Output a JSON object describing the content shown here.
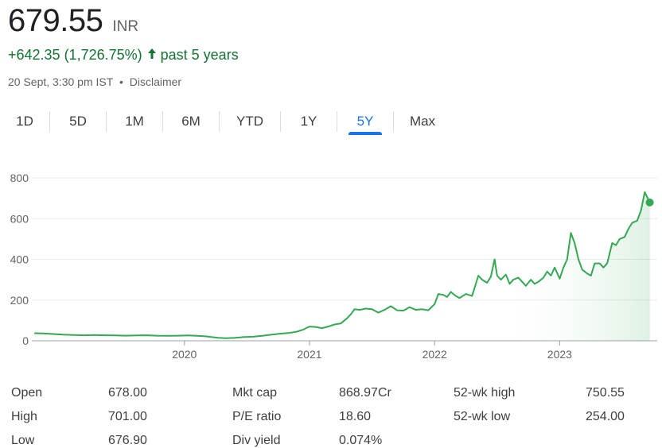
{
  "quote": {
    "price": "679.55",
    "currency": "INR",
    "change": "+642.35 (1,726.75%)",
    "period": "past 5 years",
    "timestamp": "20 Sept, 3:30 pm IST",
    "separator": "•",
    "disclaimer": "Disclaimer",
    "trend_color": "#137333"
  },
  "range_tabs": [
    {
      "label": "1D"
    },
    {
      "label": "5D"
    },
    {
      "label": "1M"
    },
    {
      "label": "6M"
    },
    {
      "label": "YTD"
    },
    {
      "label": "1Y"
    },
    {
      "label": "5Y",
      "active": true
    },
    {
      "label": "Max"
    }
  ],
  "chart_data": {
    "type": "area",
    "line_color": "#34a853",
    "y_ticks": [
      "0",
      "200",
      "400",
      "600",
      "800"
    ],
    "ylim": [
      0,
      800
    ],
    "x_ticks": [
      "2020",
      "2021",
      "2022",
      "2023"
    ],
    "x_tick_values": [
      2020.0,
      2021.0,
      2022.0,
      2023.0
    ],
    "xlim": [
      2018.78,
      2023.78
    ],
    "grid": "horizontal",
    "series": [
      {
        "x": [
          2018.8,
          2018.87,
          2018.95,
          2019.03,
          2019.12,
          2019.2,
          2019.28,
          2019.37,
          2019.45,
          2019.53,
          2019.62,
          2019.7,
          2019.78,
          2019.87,
          2019.95,
          2020.03,
          2020.1,
          2020.17,
          2020.22,
          2020.27,
          2020.33,
          2020.4,
          2020.47,
          2020.55,
          2020.63,
          2020.7,
          2020.77,
          2020.83,
          2020.9,
          2020.95,
          2021.0,
          2021.05,
          2021.1,
          2021.15,
          2021.2,
          2021.25,
          2021.3,
          2021.33,
          2021.36,
          2021.4,
          2021.45,
          2021.5,
          2021.55,
          2021.6,
          2021.65,
          2021.7,
          2021.75,
          2021.8,
          2021.85,
          2021.9,
          2021.95,
          2022.0,
          2022.03,
          2022.07,
          2022.1,
          2022.13,
          2022.17,
          2022.2,
          2022.25,
          2022.3,
          2022.35,
          2022.38,
          2022.42,
          2022.45,
          2022.48,
          2022.5,
          2022.53,
          2022.57,
          2022.6,
          2022.63,
          2022.67,
          2022.7,
          2022.73,
          2022.77,
          2022.8,
          2022.83,
          2022.87,
          2022.9,
          2022.93,
          2022.96,
          2023.0,
          2023.03,
          2023.06,
          2023.09,
          2023.12,
          2023.15,
          2023.18,
          2023.22,
          2023.25,
          2023.28,
          2023.32,
          2023.35,
          2023.38,
          2023.42,
          2023.45,
          2023.48,
          2023.52,
          2023.55,
          2023.58,
          2023.62,
          2023.65,
          2023.68,
          2023.72
        ],
        "values": [
          37,
          36,
          33,
          30,
          28,
          27,
          28,
          27,
          26,
          25,
          26,
          27,
          25,
          24,
          25,
          26,
          24,
          22,
          18,
          15,
          13,
          14,
          18,
          20,
          25,
          30,
          35,
          38,
          45,
          55,
          70,
          68,
          62,
          70,
          80,
          85,
          110,
          130,
          155,
          152,
          158,
          155,
          138,
          152,
          170,
          150,
          148,
          165,
          152,
          155,
          150,
          180,
          230,
          225,
          215,
          240,
          220,
          210,
          230,
          220,
          320,
          300,
          285,
          315,
          400,
          320,
          300,
          325,
          280,
          300,
          310,
          290,
          270,
          300,
          280,
          290,
          310,
          340,
          320,
          360,
          305,
          360,
          400,
          530,
          480,
          400,
          350,
          330,
          320,
          380,
          380,
          360,
          380,
          480,
          470,
          500,
          510,
          550,
          580,
          590,
          640,
          730,
          679.55
        ]
      }
    ]
  },
  "stats": [
    {
      "label": "Open",
      "value": "678.00"
    },
    {
      "label": "High",
      "value": "701.00"
    },
    {
      "label": "Low",
      "value": "676.90"
    },
    {
      "label": "Mkt cap",
      "value": "868.97Cr"
    },
    {
      "label": "P/E ratio",
      "value": "18.60"
    },
    {
      "label": "Div yield",
      "value": "0.074%"
    },
    {
      "label": "52-wk high",
      "value": "750.55"
    },
    {
      "label": "52-wk low",
      "value": "254.00"
    }
  ]
}
